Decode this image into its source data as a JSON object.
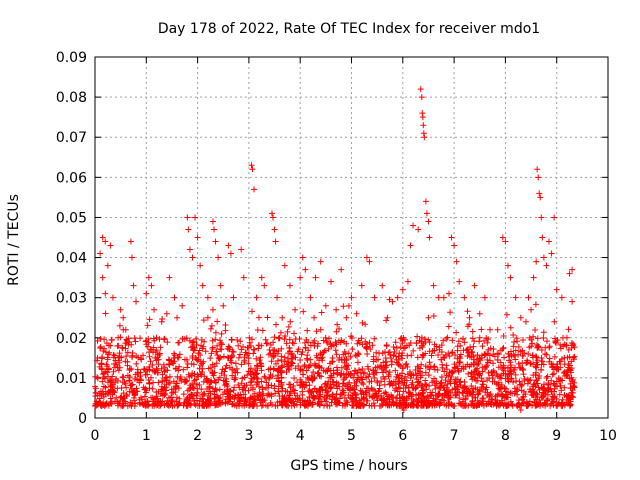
{
  "chart_data": {
    "type": "scatter",
    "title": "Day 178 of 2022, Rate Of TEC Index for receiver mdo1",
    "xlabel": "GPS time / hours",
    "ylabel": "ROTI / TECUs",
    "xlim": [
      0,
      10
    ],
    "ylim": [
      0,
      0.09
    ],
    "xticks": [
      0,
      1,
      2,
      3,
      4,
      5,
      6,
      7,
      8,
      9,
      10
    ],
    "yticks": [
      0,
      0.01,
      0.02,
      0.03,
      0.04,
      0.05,
      0.06,
      0.07,
      0.08,
      0.09
    ],
    "xtick_labels": [
      "0",
      "1",
      "2",
      "3",
      "4",
      "5",
      "6",
      "7",
      "8",
      "9",
      "10"
    ],
    "ytick_labels": [
      "0",
      "0.01",
      "0.02",
      "0.03",
      "0.04",
      "0.05",
      "0.06",
      "0.07",
      "0.08",
      "0.09"
    ],
    "grid": true,
    "marker": "+",
    "color": "#ff0000",
    "x_data_range": [
      0,
      9.35
    ],
    "baseline_band": [
      0.003,
      0.02
    ],
    "series": [
      {
        "name": "ROTI",
        "points": [
          [
            0.1,
            0.041
          ],
          [
            0.15,
            0.045
          ],
          [
            0.2,
            0.044
          ],
          [
            0.25,
            0.038
          ],
          [
            0.3,
            0.043
          ],
          [
            0.2,
            0.031
          ],
          [
            0.15,
            0.035
          ],
          [
            0.35,
            0.03
          ],
          [
            0.5,
            0.027
          ],
          [
            0.55,
            0.025
          ],
          [
            0.7,
            0.044
          ],
          [
            0.72,
            0.04
          ],
          [
            0.75,
            0.033
          ],
          [
            0.6,
            0.022
          ],
          [
            0.45,
            0.02
          ],
          [
            0.8,
            0.029
          ],
          [
            1.0,
            0.031
          ],
          [
            1.05,
            0.035
          ],
          [
            1.1,
            0.033
          ],
          [
            1.15,
            0.027
          ],
          [
            1.3,
            0.024
          ],
          [
            1.4,
            0.026
          ],
          [
            1.45,
            0.035
          ],
          [
            1.55,
            0.03
          ],
          [
            1.6,
            0.025
          ],
          [
            1.7,
            0.028
          ],
          [
            1.8,
            0.05
          ],
          [
            1.82,
            0.047
          ],
          [
            1.85,
            0.042
          ],
          [
            1.9,
            0.04
          ],
          [
            1.95,
            0.05
          ],
          [
            2.0,
            0.045
          ],
          [
            2.05,
            0.038
          ],
          [
            2.1,
            0.033
          ],
          [
            2.2,
            0.03
          ],
          [
            2.3,
            0.049
          ],
          [
            2.32,
            0.047
          ],
          [
            2.35,
            0.044
          ],
          [
            2.4,
            0.04
          ],
          [
            2.45,
            0.033
          ],
          [
            2.5,
            0.028
          ],
          [
            2.6,
            0.043
          ],
          [
            2.65,
            0.041
          ],
          [
            2.7,
            0.03
          ],
          [
            2.85,
            0.042
          ],
          [
            2.9,
            0.035
          ],
          [
            3.05,
            0.063
          ],
          [
            3.07,
            0.062
          ],
          [
            3.1,
            0.057
          ],
          [
            3.15,
            0.03
          ],
          [
            3.25,
            0.035
          ],
          [
            3.3,
            0.033
          ],
          [
            3.45,
            0.051
          ],
          [
            3.47,
            0.05
          ],
          [
            3.5,
            0.047
          ],
          [
            3.52,
            0.044
          ],
          [
            3.55,
            0.03
          ],
          [
            3.65,
            0.025
          ],
          [
            3.7,
            0.038
          ],
          [
            3.8,
            0.033
          ],
          [
            3.9,
            0.027
          ],
          [
            4.0,
            0.035
          ],
          [
            4.05,
            0.04
          ],
          [
            4.1,
            0.037
          ],
          [
            4.2,
            0.03
          ],
          [
            4.3,
            0.035
          ],
          [
            4.4,
            0.039
          ],
          [
            4.5,
            0.028
          ],
          [
            4.6,
            0.034
          ],
          [
            4.7,
            0.027
          ],
          [
            4.8,
            0.037
          ],
          [
            4.9,
            0.025
          ],
          [
            5.0,
            0.03
          ],
          [
            5.1,
            0.026
          ],
          [
            5.2,
            0.033
          ],
          [
            5.3,
            0.04
          ],
          [
            5.35,
            0.039
          ],
          [
            5.45,
            0.03
          ],
          [
            5.6,
            0.033
          ],
          [
            5.7,
            0.025
          ],
          [
            5.8,
            0.029
          ],
          [
            5.9,
            0.03
          ],
          [
            6.0,
            0.032
          ],
          [
            6.1,
            0.034
          ],
          [
            6.15,
            0.043
          ],
          [
            6.2,
            0.048
          ],
          [
            6.3,
            0.047
          ],
          [
            6.35,
            0.082
          ],
          [
            6.37,
            0.08
          ],
          [
            6.38,
            0.076
          ],
          [
            6.39,
            0.075
          ],
          [
            6.4,
            0.073
          ],
          [
            6.41,
            0.071
          ],
          [
            6.42,
            0.07
          ],
          [
            6.45,
            0.054
          ],
          [
            6.47,
            0.051
          ],
          [
            6.5,
            0.049
          ],
          [
            6.52,
            0.045
          ],
          [
            6.6,
            0.033
          ],
          [
            6.7,
            0.03
          ],
          [
            6.8,
            0.03
          ],
          [
            6.9,
            0.031
          ],
          [
            6.95,
            0.045
          ],
          [
            7.0,
            0.043
          ],
          [
            7.05,
            0.039
          ],
          [
            7.1,
            0.034
          ],
          [
            7.2,
            0.03
          ],
          [
            7.3,
            0.025
          ],
          [
            7.4,
            0.033
          ],
          [
            7.5,
            0.026
          ],
          [
            7.6,
            0.03
          ],
          [
            7.7,
            0.022
          ],
          [
            7.85,
            0.022
          ],
          [
            7.95,
            0.045
          ],
          [
            8.0,
            0.044
          ],
          [
            8.05,
            0.038
          ],
          [
            8.1,
            0.035
          ],
          [
            8.2,
            0.03
          ],
          [
            8.3,
            0.025
          ],
          [
            8.4,
            0.024
          ],
          [
            8.45,
            0.03
          ],
          [
            8.5,
            0.027
          ],
          [
            8.55,
            0.035
          ],
          [
            8.6,
            0.039
          ],
          [
            8.62,
            0.062
          ],
          [
            8.64,
            0.06
          ],
          [
            8.66,
            0.056
          ],
          [
            8.68,
            0.055
          ],
          [
            8.7,
            0.05
          ],
          [
            8.72,
            0.045
          ],
          [
            8.75,
            0.04
          ],
          [
            8.8,
            0.038
          ],
          [
            8.85,
            0.044
          ],
          [
            8.9,
            0.041
          ],
          [
            8.95,
            0.05
          ],
          [
            9.0,
            0.032
          ],
          [
            9.1,
            0.03
          ],
          [
            9.25,
            0.036
          ],
          [
            9.3,
            0.037
          ],
          [
            9.3,
            0.029
          ],
          [
            9.2,
            0.02
          ],
          [
            8.3,
            0.002
          ],
          [
            6.0,
            0.0025
          ],
          [
            6.02,
            0.002
          ],
          [
            0.05,
            0.015
          ],
          [
            0.3,
            0.018
          ],
          [
            1.2,
            0.02
          ],
          [
            2.2,
            0.025
          ],
          [
            2.3,
            0.027
          ],
          [
            3.6,
            0.02
          ],
          [
            4.4,
            0.022
          ],
          [
            6.5,
            0.025
          ],
          [
            7.5,
            0.02
          ]
        ]
      }
    ]
  }
}
